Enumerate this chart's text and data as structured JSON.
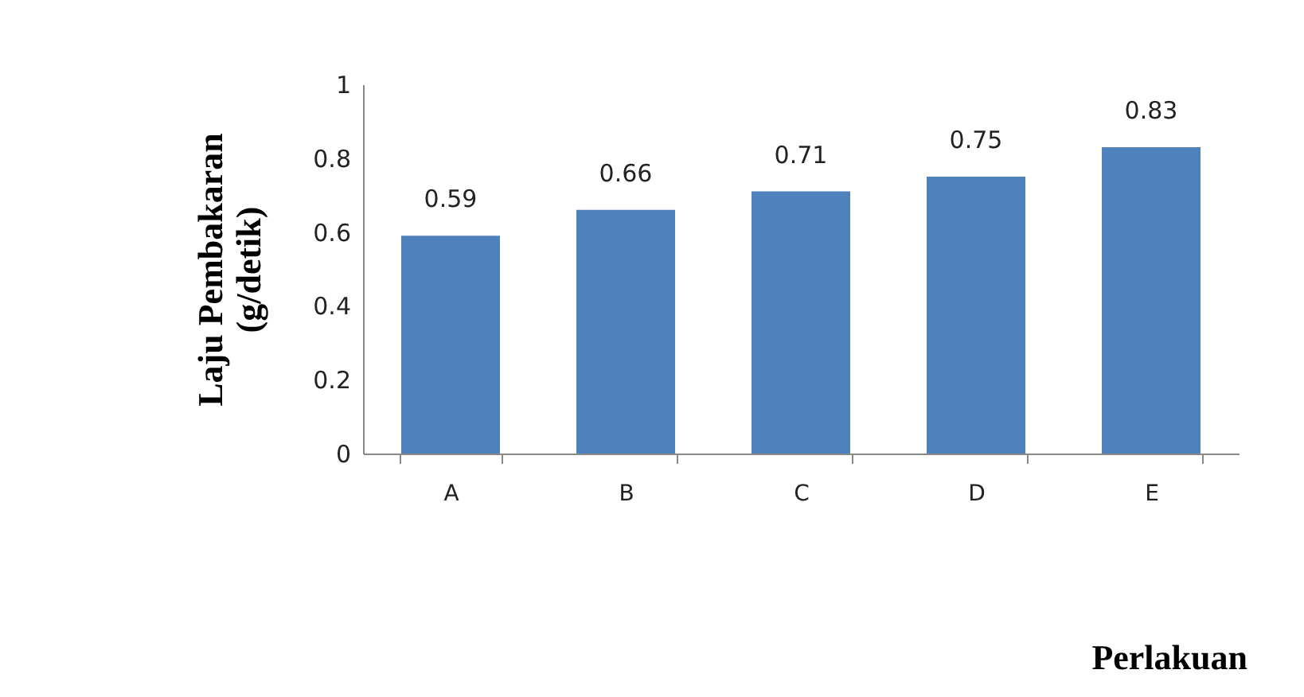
{
  "chart_data": {
    "type": "bar",
    "categories": [
      "A",
      "B",
      "C",
      "D",
      "E"
    ],
    "values": [
      0.59,
      0.66,
      0.71,
      0.75,
      0.83
    ],
    "color": "#4f81bd",
    "ylim": [
      0,
      1
    ],
    "yticks": [
      0,
      0.2,
      0.4,
      0.6,
      0.8,
      1
    ],
    "grid": false,
    "data_labels": true,
    "ylabel": "Laju Pembakaran\n(g/detik)",
    "xlabel": "Perlakuan"
  }
}
